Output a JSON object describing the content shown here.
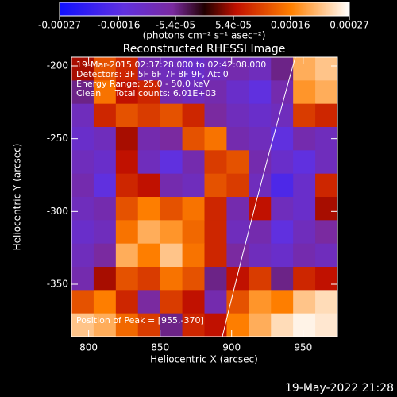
{
  "chart_data": {
    "type": "image",
    "title": "Reconstructed RHESSI Image",
    "xlabel": "Heliocentric X (arcsec)",
    "ylabel": "Heliocentric Y (arcsec)",
    "colorbar_label": "(photons cm⁻² s⁻¹ asec⁻²)",
    "clim": [
      -0.00027,
      0.00027
    ],
    "cticks": [
      -0.00027,
      -0.00016,
      {
        "value": -5.4e-05,
        "label": "-5.4e-05"
      },
      {
        "value": 5.4e-05,
        "label": "5.4e-05"
      },
      0.00016,
      0.00027
    ],
    "xlim": [
      788,
      974
    ],
    "ylim": [
      -386,
      -194
    ],
    "xticks": [
      800,
      850,
      900,
      950
    ],
    "yticks": [
      -200,
      -250,
      -300,
      -350
    ],
    "annotations": [
      "19-Mar-2015 02:37:28.000 to 02:42:08.000",
      "Detectors: 3F 5F 6F 7F 8F 9F, Att 0",
      "Energy Range: 25.0 - 50.0 keV",
      "Clean     Total counts: 6.01E+03"
    ],
    "peak_label": "Position of Peak = [955,-370]",
    "footer": "19-May-2022 21:28",
    "z": [
      [
        5e-05,
        0.00012,
        8e-05,
        -8e-05,
        -0.0001,
        -0.00012,
        -0.0001,
        -8e-05,
        -0.0001,
        -5e-05,
        0.0002,
        0.00022
      ],
      [
        -5e-05,
        0.00015,
        6e-05,
        8e-05,
        -8e-05,
        -0.0001,
        -8e-05,
        -0.00012,
        -0.00015,
        -8e-05,
        0.00018,
        0.0002
      ],
      [
        -0.0001,
        8e-05,
        0.00012,
        0.0001,
        0.00012,
        8e-05,
        -6e-05,
        -0.0001,
        -0.00012,
        -0.0001,
        0.0001,
        8e-05
      ],
      [
        -0.00012,
        -0.0001,
        5e-05,
        -8e-05,
        -6e-05,
        0.00012,
        0.00015,
        -8e-05,
        -0.0001,
        -0.00015,
        -8e-05,
        -0.0001
      ],
      [
        -0.0001,
        -0.00012,
        6e-05,
        -0.0001,
        -0.00015,
        -8e-05,
        0.0001,
        0.00012,
        -8e-05,
        -0.00012,
        -0.00015,
        -0.0001
      ],
      [
        -8e-05,
        -0.00015,
        8e-05,
        6e-05,
        -8e-05,
        -0.0001,
        0.00012,
        0.0001,
        -0.0001,
        -0.00018,
        -0.00012,
        8e-05
      ],
      [
        -0.0001,
        -8e-05,
        0.00012,
        0.00016,
        0.00012,
        0.00015,
        8e-05,
        -8e-05,
        6e-05,
        -0.0001,
        -0.00012,
        5e-05
      ],
      [
        -0.00012,
        -0.0001,
        0.00015,
        0.0002,
        0.00018,
        0.00014,
        8e-05,
        -0.0001,
        -8e-05,
        -0.00015,
        -0.0001,
        -6e-05
      ],
      [
        -0.0001,
        -6e-05,
        0.0002,
        0.00016,
        0.00022,
        0.00015,
        8e-05,
        -6e-05,
        -0.0001,
        -0.00012,
        -8e-05,
        -0.0001
      ],
      [
        -8e-05,
        5e-05,
        0.00012,
        0.0001,
        0.00015,
        0.00012,
        -5e-05,
        6e-05,
        0.0001,
        -5e-05,
        8e-05,
        6e-05
      ],
      [
        0.00012,
        0.00016,
        8e-05,
        -6e-05,
        0.0001,
        6e-05,
        -8e-05,
        0.00012,
        0.00018,
        0.00016,
        0.00022,
        0.00024
      ],
      [
        0.00022,
        0.0002,
        0.00014,
        0.0001,
        -5e-05,
        8e-05,
        6e-05,
        0.00016,
        0.0002,
        0.00024,
        0.00026,
        0.00025
      ]
    ]
  }
}
